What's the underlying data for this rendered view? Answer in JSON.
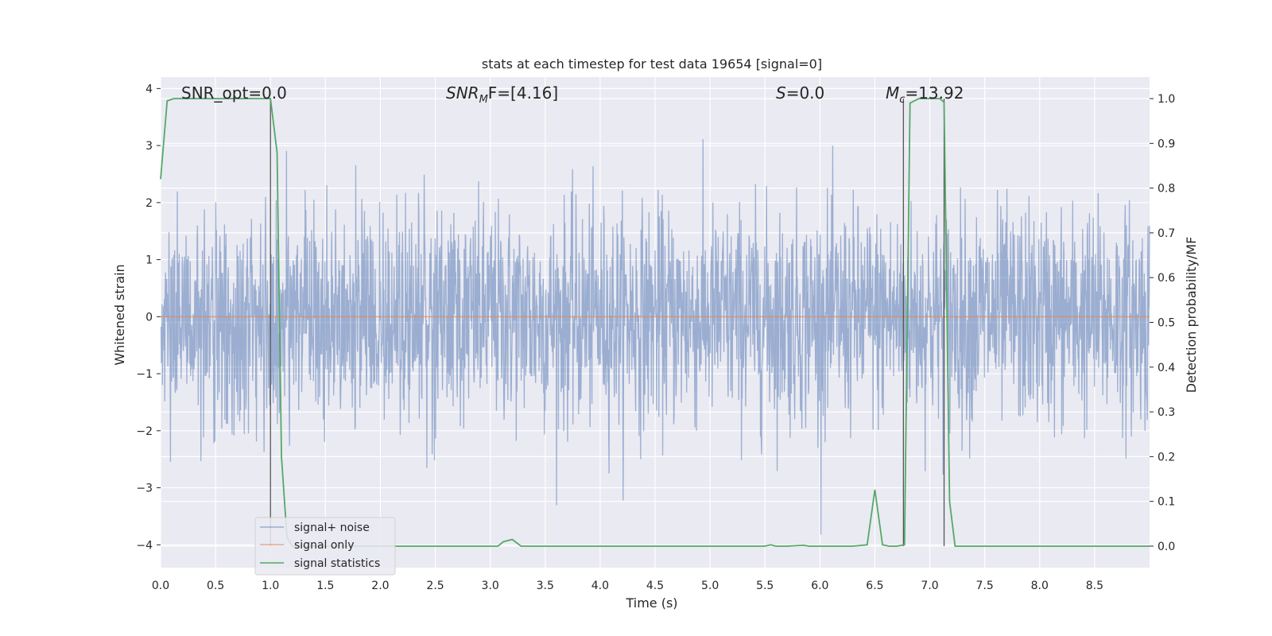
{
  "chart_data": {
    "type": "line",
    "title": "stats at each timestep for test data 19654 [signal=0]",
    "xlabel": "Time (s)",
    "ylabel": "Whitened strain",
    "y2label": "Detection probability/MF",
    "xlim": [
      0,
      9.0
    ],
    "ylim": [
      -4.4,
      4.2
    ],
    "y2lim": [
      -0.048,
      1.048
    ],
    "x_ticks": [
      0.0,
      0.5,
      1.0,
      1.5,
      2.0,
      2.5,
      3.0,
      3.5,
      4.0,
      4.5,
      5.0,
      5.5,
      6.0,
      6.5,
      7.0,
      7.5,
      8.0,
      8.5
    ],
    "x_tick_labels": [
      "0.0",
      "0.5",
      "1.0",
      "1.5",
      "2.0",
      "2.5",
      "3.0",
      "3.5",
      "4.0",
      "4.5",
      "5.0",
      "5.5",
      "6.0",
      "6.5",
      "7.0",
      "7.5",
      "8.0",
      "8.5"
    ],
    "y_ticks": [
      -4,
      -3,
      -2,
      -1,
      0,
      1,
      2,
      3,
      4
    ],
    "y_tick_labels": [
      "−4",
      "−3",
      "−2",
      "−1",
      "0",
      "1",
      "2",
      "3",
      "4"
    ],
    "y2_ticks": [
      0.0,
      0.1,
      0.2,
      0.3,
      0.4,
      0.5,
      0.6,
      0.7,
      0.8,
      0.9,
      1.0
    ],
    "y2_tick_labels": [
      "0.0",
      "0.1",
      "0.2",
      "0.3",
      "0.4",
      "0.5",
      "0.6",
      "0.7",
      "0.8",
      "0.9",
      "1.0"
    ],
    "grid": true,
    "legend_position": "lower-left",
    "annotations": {
      "snr_opt": "SNR_opt=0.0",
      "snr_mf_main": "SNR",
      "snr_mf_sub": "M",
      "snr_mf_rest": "F=[4.16]",
      "s_main": "S",
      "s_rest": "=0.0",
      "mc_main": "M",
      "mc_sub": "c",
      "mc_rest": "=13.92"
    },
    "vertical_markers_x": [
      1.0,
      6.76,
      7.13
    ],
    "series": [
      {
        "name": "signal+ noise",
        "color": "#4c72b0",
        "description_free": true,
        "noise_std": 0.95,
        "x_range": [
          0,
          9.0
        ]
      },
      {
        "name": "signal only",
        "color": "#dd8452",
        "constant_value": 0.0
      },
      {
        "name": "signal statistics",
        "color": "#55a868",
        "axis": "right",
        "x": [
          0.0,
          0.06,
          0.12,
          0.2,
          0.3,
          0.5,
          0.7,
          0.9,
          1.0,
          1.06,
          1.1,
          1.15,
          1.2,
          1.3,
          1.5,
          2.0,
          2.5,
          3.0,
          3.07,
          3.12,
          3.2,
          3.28,
          3.5,
          4.0,
          4.5,
          5.0,
          5.5,
          5.55,
          5.6,
          5.7,
          5.85,
          5.9,
          6.0,
          6.3,
          6.43,
          6.5,
          6.57,
          6.63,
          6.7,
          6.77,
          6.82,
          6.9,
          7.0,
          7.09,
          7.13,
          7.18,
          7.23,
          7.5,
          8.0,
          8.5,
          9.0
        ],
        "y": [
          0.82,
          0.995,
          1.0,
          1.0,
          1.0,
          1.0,
          1.0,
          1.0,
          1.0,
          0.88,
          0.2,
          0.02,
          0.0,
          0.0,
          0.0,
          0.0,
          0.0,
          0.0,
          0.0,
          0.01,
          0.015,
          0.0,
          0.0,
          0.0,
          0.0,
          0.0,
          0.0,
          0.003,
          0.0,
          0.0,
          0.002,
          0.0,
          0.0,
          0.0,
          0.003,
          0.126,
          0.003,
          0.0,
          0.0,
          0.003,
          0.99,
          1.0,
          1.0,
          1.0,
          0.992,
          0.1,
          0.0,
          0.0,
          0.0,
          0.0,
          0.0
        ]
      }
    ]
  }
}
